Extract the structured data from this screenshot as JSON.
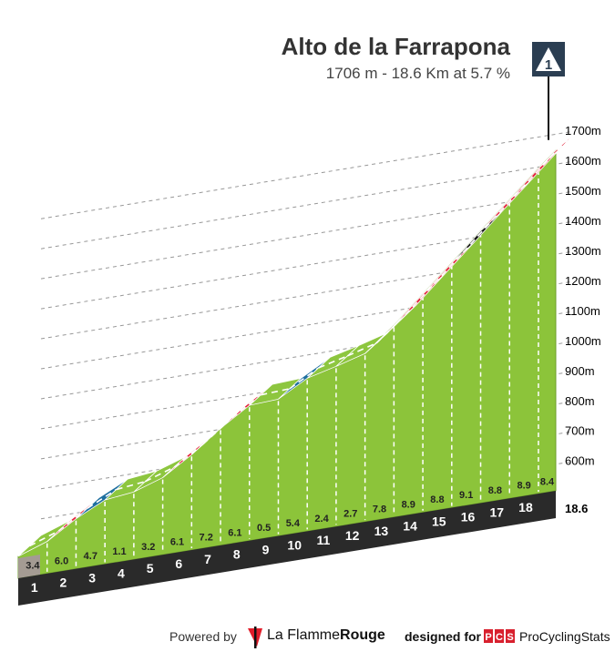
{
  "header": {
    "title": "Alto de la Farrapona",
    "subtitle": "1706 m - 18.6 Km at 5.7 %"
  },
  "summit_icon": {
    "glyph": "1",
    "name": "summit-category-icon"
  },
  "chart_data": {
    "type": "area",
    "title": "Alto de la Farrapona",
    "subtitle": "1706 m - 18.6 Km at 5.7 %",
    "x_unit": "km",
    "y_unit": "m",
    "ylim": [
      600,
      1706
    ],
    "yticks": [
      "1700m",
      "1600m",
      "1500m",
      "1400m",
      "1300m",
      "1200m",
      "1100m",
      "1000m",
      "900m",
      "800m",
      "700m",
      "600m"
    ],
    "ytick_values": [
      1700,
      1600,
      1500,
      1400,
      1300,
      1200,
      1100,
      1000,
      900,
      800,
      700,
      600
    ],
    "km_labels": [
      "1",
      "2",
      "3",
      "4",
      "5",
      "6",
      "7",
      "8",
      "9",
      "10",
      "11",
      "12",
      "13",
      "14",
      "15",
      "16",
      "17",
      "18"
    ],
    "end_label": "18.6",
    "gradients": [
      3.4,
      6.0,
      4.7,
      1.1,
      3.2,
      6.1,
      7.2,
      6.1,
      0.5,
      5.4,
      2.4,
      2.7,
      7.8,
      8.9,
      8.8,
      9.1,
      8.8,
      8.9,
      8.4
    ],
    "gradient_labels": [
      "3.4",
      "6.0",
      "4.7",
      "1.1",
      "3.2",
      "6.1",
      "7.2",
      "6.1",
      "0.5",
      "5.4",
      "2.4",
      "2.7",
      "7.8",
      "8.9",
      "8.8",
      "9.1",
      "8.8",
      "8.9",
      "8.4"
    ],
    "segment_colors": [
      "green",
      "red",
      "blue",
      "green",
      "green",
      "red",
      "red",
      "red",
      "green",
      "blue",
      "green",
      "green",
      "red",
      "red",
      "red",
      "black",
      "red",
      "red",
      "red"
    ],
    "palette": {
      "green": "#8dc63f",
      "red": "#e3263c",
      "blue": "#1e6f9f",
      "black": "#151515",
      "base": "#2a2a2a",
      "fill": "#8cc43a",
      "start_block": "#a49b93"
    },
    "summit_altitude": 1706,
    "length_km": 18.6,
    "avg_gradient": 5.7
  },
  "footer": {
    "powered_by": "Powered by",
    "brand_lfr_light": "La Flamme",
    "brand_lfr_bold": "Rouge",
    "designed_for": "designed for",
    "brand_pcs": "ProCyclingStats",
    "pcs_logo_text": "PCS"
  }
}
